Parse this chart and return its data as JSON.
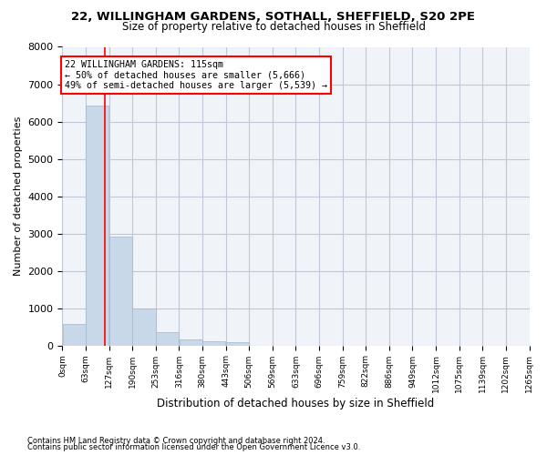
{
  "title_line1": "22, WILLINGHAM GARDENS, SOTHALL, SHEFFIELD, S20 2PE",
  "title_line2": "Size of property relative to detached houses in Sheffield",
  "xlabel": "Distribution of detached houses by size in Sheffield",
  "ylabel": "Number of detached properties",
  "bar_color": "#c8d8e8",
  "bar_edge_color": "#a0b8cc",
  "grid_color": "#c0c8d8",
  "background_color": "#f0f4f8",
  "bin_labels": [
    "0sqm",
    "63sqm",
    "127sqm",
    "190sqm",
    "253sqm",
    "316sqm",
    "380sqm",
    "443sqm",
    "506sqm",
    "569sqm",
    "633sqm",
    "696sqm",
    "759sqm",
    "822sqm",
    "886sqm",
    "949sqm",
    "1012sqm",
    "1075sqm",
    "1139sqm",
    "1202sqm",
    "1265sqm"
  ],
  "bar_values": [
    580,
    6430,
    2920,
    990,
    360,
    170,
    110,
    90,
    0,
    0,
    0,
    0,
    0,
    0,
    0,
    0,
    0,
    0,
    0,
    0
  ],
  "property_size": 115,
  "property_bin_index": 1,
  "annotation_line1": "22 WILLINGHAM GARDENS: 115sqm",
  "annotation_line2": "← 50% of detached houses are smaller (5,666)",
  "annotation_line3": "49% of semi-detached houses are larger (5,539) →",
  "red_line_x": 115,
  "ylim": [
    0,
    8000
  ],
  "yticks": [
    0,
    1000,
    2000,
    3000,
    4000,
    5000,
    6000,
    7000,
    8000
  ],
  "footnote1": "Contains HM Land Registry data © Crown copyright and database right 2024.",
  "footnote2": "Contains public sector information licensed under the Open Government Licence v3.0."
}
